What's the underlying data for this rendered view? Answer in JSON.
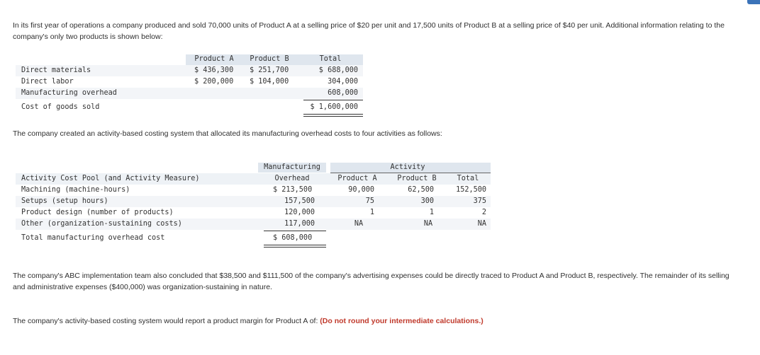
{
  "intro": "In its first year of operations a company produced and sold 70,000 units of Product A at a selling price of $20 per unit and 17,500 units of Product B at a selling price of $40 per unit. Additional information relating to the company's only two products is shown below:",
  "table1": {
    "headers": [
      "Product A",
      "Product B",
      "Total"
    ],
    "rows": [
      {
        "label": "Direct materials",
        "a": "$ 436,300",
        "b": "$ 251,700",
        "total": "$ 688,000"
      },
      {
        "label": "Direct labor",
        "a": "$ 200,000",
        "b": "$ 104,000",
        "total": "304,000"
      },
      {
        "label": "Manufacturing overhead",
        "a": "",
        "b": "",
        "total": "608,000"
      },
      {
        "label": "Cost of goods sold",
        "a": "",
        "b": "",
        "total": "$ 1,600,000"
      }
    ]
  },
  "abc_intro": "The company created an activity-based costing system that allocated its manufacturing overhead costs to four activities as follows:",
  "table2": {
    "header_top_mo": "Manufacturing",
    "header_top_activity": "Activity",
    "header_pool": "Activity Cost Pool (and Activity Measure)",
    "header_mo": "Overhead",
    "header_a": "Product A",
    "header_b": "Product B",
    "header_total": "Total",
    "rows": [
      {
        "label": "Machining (machine-hours)",
        "mo": "$ 213,500",
        "a": "90,000",
        "b": "62,500",
        "total": "152,500"
      },
      {
        "label": "Setups (setup hours)",
        "mo": "157,500",
        "a": "75",
        "b": "300",
        "total": "375"
      },
      {
        "label": "Product design (number of products)",
        "mo": "120,000",
        "a": "1",
        "b": "1",
        "total": "2"
      },
      {
        "label": "Other (organization-sustaining costs)",
        "mo": "117,000",
        "a": "NA",
        "b": "NA",
        "total": "NA"
      }
    ],
    "total_label": "Total manufacturing overhead cost",
    "total_mo": "$ 608,000"
  },
  "para2": "The company's ABC implementation team also concluded that $38,500 and $111,500 of the company's advertising expenses could be directly traced to Product A and Product B, respectively. The remainder of its selling and administrative expenses ($400,000) was organization-sustaining in nature.",
  "question": "The company's activity-based costing system would report a product margin for Product A of:",
  "question_note": "(Do not round your intermediate calculations.)"
}
